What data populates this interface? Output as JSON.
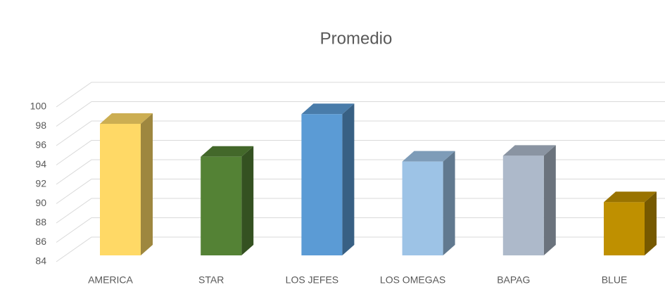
{
  "chart_data": {
    "type": "bar3d",
    "title": "Promedio",
    "categories": [
      "AMERICA",
      "STAR",
      "LOS JEFES",
      "LOS OMEGAS",
      "BAPAG",
      "BLUE"
    ],
    "values": [
      97.6,
      94.2,
      98.6,
      93.7,
      94.3,
      89.5
    ],
    "colors": [
      "#ffd966",
      "#548235",
      "#5b9bd5",
      "#9dc3e6",
      "#adb9ca",
      "#bf9000"
    ],
    "ylim": [
      84,
      100
    ],
    "yticks": [
      84,
      86,
      88,
      90,
      92,
      94,
      96,
      98,
      100
    ],
    "grid": true
  }
}
